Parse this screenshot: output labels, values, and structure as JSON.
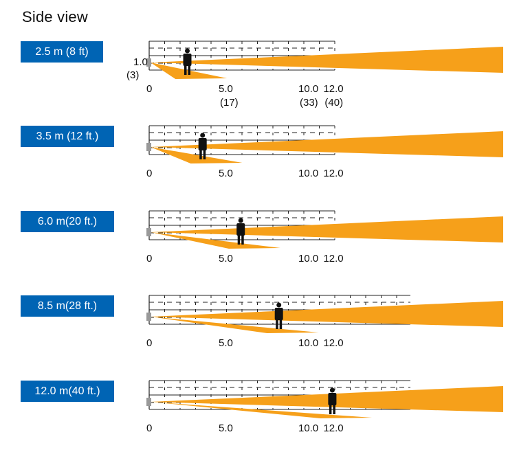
{
  "title": "Side view",
  "y_marker": {
    "value": "1.0",
    "sub": "(3)"
  },
  "colors": {
    "badge": "#0064b4",
    "beam": "#f6a01a",
    "grid": "#222222",
    "sensor": "#999999",
    "person": "#111111"
  },
  "icons": [
    "sensor-icon",
    "person-icon"
  ],
  "panels": [
    {
      "label": "2.5 m (8 ft)",
      "distance_m": 2.5,
      "ticks": [
        "0",
        "5.0",
        "10.0",
        "12.0"
      ],
      "ticks_ft": [
        "(17)",
        "(33)",
        "(40)"
      ]
    },
    {
      "label": "3.5 m (12 ft.)",
      "distance_m": 3.5,
      "ticks": [
        "0",
        "5.0",
        "10.0",
        "12.0"
      ]
    },
    {
      "label": "6.0 m(20 ft.)",
      "distance_m": 6.0,
      "ticks": [
        "0",
        "5.0",
        "10.0",
        "12.0"
      ]
    },
    {
      "label": "8.5 m(28 ft.)",
      "distance_m": 8.5,
      "ticks": [
        "0",
        "5.0",
        "10.0",
        "12.0"
      ]
    },
    {
      "label": "12.0 m(40 ft.)",
      "distance_m": 12.0,
      "ticks": [
        "0",
        "5.0",
        "10.0",
        "12.0"
      ]
    }
  ]
}
